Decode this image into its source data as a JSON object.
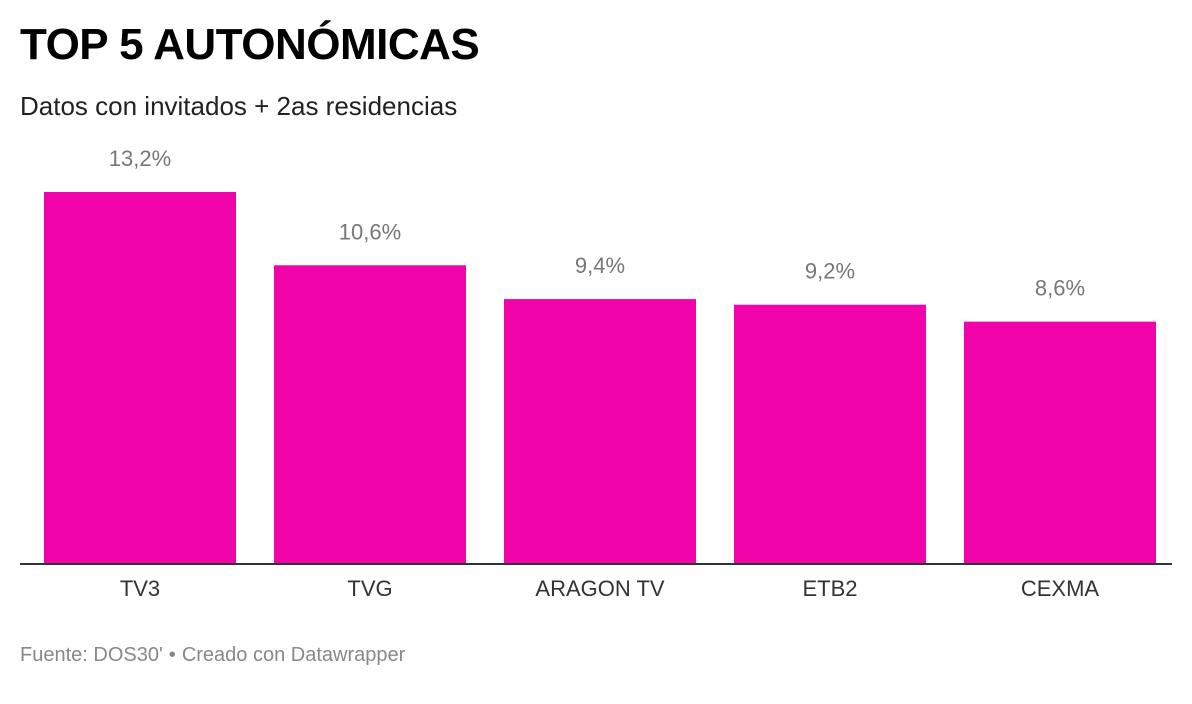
{
  "header": {
    "title": "TOP 5 AUTONÓMICAS",
    "subtitle": "Datos con invitados + 2as residencias"
  },
  "footer": {
    "source": "Fuente: DOS30'",
    "separator": "•",
    "credit": "Creado con Datawrapper"
  },
  "colors": {
    "bar": "#F003A8",
    "value_label": "#777777",
    "category_label": "#333333",
    "baseline": "#333333"
  },
  "chart_data": {
    "type": "bar",
    "title": "TOP 5 AUTONÓMICAS",
    "subtitle": "Datos con invitados + 2as residencias",
    "categories": [
      "TV3",
      "TVG",
      "ARAGON TV",
      "ETB2",
      "CEXMA"
    ],
    "values": [
      13.2,
      10.6,
      9.4,
      9.2,
      8.6
    ],
    "value_labels": [
      "13,2%",
      "10,6%",
      "9,4%",
      "9,2%",
      "8,6%"
    ],
    "ylim": [
      0,
      13.2
    ],
    "grid": false,
    "legend": "none"
  }
}
